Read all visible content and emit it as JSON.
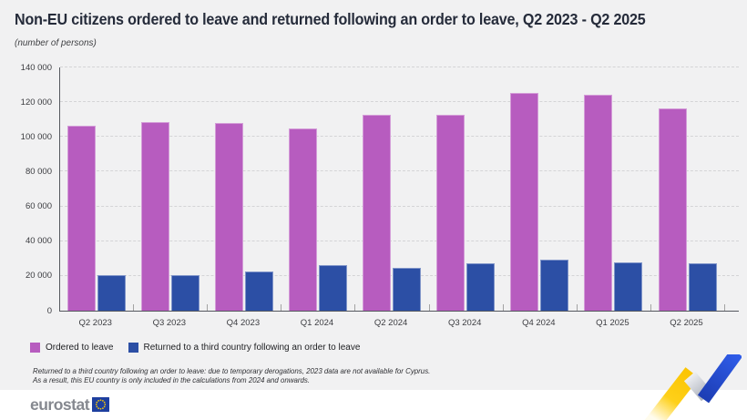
{
  "header": {
    "title": "Non-EU citizens ordered to leave and returned following an order to leave, Q2 2023 - Q2 2025",
    "subtitle": "(number of persons)"
  },
  "chart_data": {
    "type": "bar",
    "title": "Non-EU citizens ordered to leave and returned following an order to leave, Q2 2023 - Q2 2025",
    "subtitle": "(number of persons)",
    "categories": [
      "Q2 2023",
      "Q3 2023",
      "Q4 2023",
      "Q1 2024",
      "Q2 2024",
      "Q3 2024",
      "Q4 2024",
      "Q1 2025",
      "Q2 2025"
    ],
    "series": [
      {
        "name": "Ordered to leave",
        "color": "#b75cbf",
        "values": [
          106500,
          108500,
          108000,
          105000,
          112500,
          112500,
          125500,
          124500,
          116500
        ]
      },
      {
        "name": "Returned to a third country following an order to leave",
        "color": "#2c4fa5",
        "values": [
          20500,
          20500,
          22500,
          26000,
          24500,
          27500,
          29500,
          28000,
          27500
        ]
      }
    ],
    "xlabel": "",
    "ylabel": "number of persons",
    "ylim": [
      0,
      140000
    ],
    "yticks": [
      0,
      20000,
      40000,
      60000,
      80000,
      100000,
      120000,
      140000
    ],
    "ytick_labels": [
      "0",
      "20 000",
      "40 000",
      "60 000",
      "80 000",
      "100 000",
      "120 000",
      "140 000"
    ],
    "grid": "horizontal-dashed",
    "legend_position": "bottom-left"
  },
  "footnote": {
    "line1": "Returned to a third country following an order to leave: due to temporary derogations, 2023 data are not available for Cyprus.",
    "line2": "As a result, this EU country is only included in the calculations from 2024 and onwards."
  },
  "footer": {
    "logo_text": "eurostat"
  },
  "colors": {
    "page_background": "#f1f1f2",
    "footer_background": "#ffffff",
    "ordered_bar": "#b75cbf",
    "returned_bar": "#2c4fa5",
    "gridline": "#d4d4d6",
    "axis": "#55585e",
    "title_text": "#252b3a",
    "body_text": "#3b3c40",
    "eurostat_wordmark": "#85888f",
    "eu_flag_blue": "#1e3f9f",
    "eu_flag_stars": "#ffcc00",
    "zigzag_yellow": "#fdca04",
    "zigzag_gray": "#b6bac3",
    "zigzag_blue": "#2c57e4"
  }
}
